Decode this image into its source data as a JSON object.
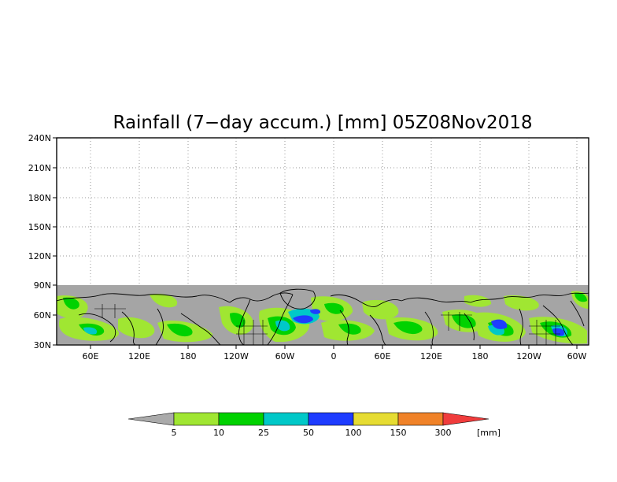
{
  "title": "Rainfall (7−day accum.) [mm] 05Z08Nov2018",
  "y_ticks": [
    "240N",
    "210N",
    "180N",
    "150N",
    "120N",
    "90N",
    "60N",
    "30N"
  ],
  "x_ticks": [
    "60E",
    "120E",
    "180",
    "120W",
    "60W",
    "0",
    "60E",
    "120E",
    "180",
    "120W",
    "60W"
  ],
  "colorbar": {
    "unit": "[mm]",
    "labels": [
      "5",
      "10",
      "25",
      "50",
      "100",
      "150",
      "300"
    ],
    "colors": [
      "#aaaaaa",
      "#a0e632",
      "#00d200",
      "#00c8c8",
      "#1e3cff",
      "#e6dc32",
      "#f08228",
      "#f03c3c"
    ]
  },
  "map_colors": {
    "no_rain": "#a5a5a5",
    "light": "#a0e632",
    "green": "#00d200",
    "cyan": "#00c8c8",
    "blue": "#1e3cff",
    "coast": "#000000"
  }
}
